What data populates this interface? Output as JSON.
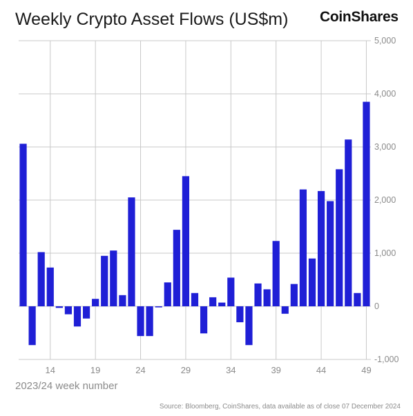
{
  "header": {
    "title": "Weekly Crypto Asset Flows (US$m)",
    "brand": "CoinShares"
  },
  "footer": {
    "source": "Source: Bloomberg, CoinShares, data available as of close 07 December 2024"
  },
  "colors": {
    "bar": "#1f1fd6",
    "grid": "#c8c8c8",
    "axis": "#8a8a8a"
  },
  "chart_data": {
    "type": "bar",
    "title": "Weekly Crypto Asset Flows (US$m)",
    "xlabel": "2023/24 week number",
    "ylabel": "",
    "ylim": [
      -1000,
      5000
    ],
    "y_axis_side": "right",
    "yticks": [
      5000,
      4000,
      3000,
      2000,
      1000,
      0,
      -1000
    ],
    "ytick_labels": [
      "5,000",
      "4,000",
      "3,000",
      "2,000",
      "1,000",
      "0",
      "-1,000"
    ],
    "xtick_labels": [
      "14",
      "19",
      "24",
      "29",
      "34",
      "39",
      "44",
      "49"
    ],
    "xtick_categories": [
      14,
      19,
      24,
      29,
      34,
      39,
      44,
      49
    ],
    "grid": true,
    "categories": [
      11,
      12,
      13,
      14,
      15,
      16,
      17,
      18,
      19,
      20,
      21,
      22,
      23,
      24,
      25,
      26,
      27,
      28,
      29,
      30,
      31,
      32,
      33,
      34,
      35,
      36,
      37,
      38,
      39,
      40,
      41,
      42,
      43,
      44,
      45,
      46,
      47,
      48,
      49
    ],
    "values": [
      3060,
      -730,
      1020,
      730,
      -30,
      -150,
      -380,
      -230,
      140,
      950,
      1050,
      210,
      2050,
      -560,
      -560,
      -20,
      450,
      1440,
      2450,
      250,
      -510,
      170,
      70,
      540,
      -300,
      -730,
      430,
      320,
      1230,
      -140,
      420,
      2200,
      900,
      2170,
      1980,
      2580,
      3140,
      250,
      3850
    ]
  }
}
